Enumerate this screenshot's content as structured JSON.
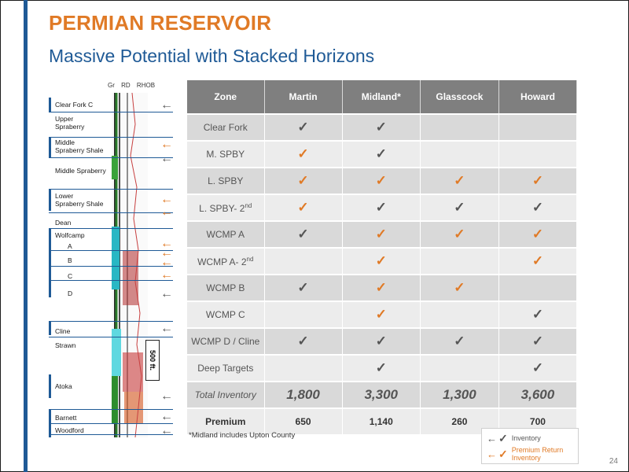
{
  "title": "PERMIAN RESERVOIR",
  "subtitle": "Massive Potential with Stacked Horizons",
  "page_number": "24",
  "colors": {
    "accent_blue": "#1f5a96",
    "accent_orange": "#e07a26",
    "header_gray": "#7f7f7f"
  },
  "log": {
    "track_headers": [
      "Gr",
      "RD",
      "RHOB"
    ],
    "zones": [
      {
        "label": "Clear Fork C"
      },
      {
        "label": "Upper\nSpraberry"
      },
      {
        "label": "Middle\nSpraberry Shale"
      },
      {
        "label": "Middle Spraberry"
      },
      {
        "label": "Lower\nSpraberry Shale"
      },
      {
        "label": "Dean"
      },
      {
        "label": "Wolfcamp"
      },
      {
        "label": "A"
      },
      {
        "label": "B"
      },
      {
        "label": "C"
      },
      {
        "label": "D"
      },
      {
        "label": "Cline"
      },
      {
        "label": "Strawn"
      },
      {
        "label": "Atoka"
      },
      {
        "label": "Barnett"
      },
      {
        "label": "Woodford"
      }
    ],
    "scale_label": "500 ft."
  },
  "table": {
    "headers": [
      "Zone",
      "Martin",
      "Midland*",
      "Glasscock",
      "Howard"
    ],
    "rows": [
      {
        "zone": "Clear Fork",
        "cells": [
          "gray",
          "gray",
          "",
          ""
        ]
      },
      {
        "zone": "M. SPBY",
        "cells": [
          "orange",
          "gray",
          "",
          ""
        ]
      },
      {
        "zone": "L. SPBY",
        "cells": [
          "orange",
          "orange",
          "orange",
          "orange"
        ]
      },
      {
        "zone": "L. SPBY- 2nd",
        "cells": [
          "orange",
          "gray",
          "gray",
          "gray"
        ]
      },
      {
        "zone": "WCMP A",
        "cells": [
          "gray",
          "orange",
          "orange",
          "orange"
        ]
      },
      {
        "zone": "WCMP A- 2nd",
        "cells": [
          "",
          "orange",
          "",
          "orange"
        ]
      },
      {
        "zone": "WCMP B",
        "cells": [
          "gray",
          "orange",
          "orange",
          ""
        ]
      },
      {
        "zone": "WCMP C",
        "cells": [
          "",
          "orange",
          "",
          "gray"
        ]
      },
      {
        "zone": "WCMP D / Cline",
        "cells": [
          "gray",
          "gray",
          "gray",
          "gray"
        ]
      },
      {
        "zone": "Deep Targets",
        "cells": [
          "",
          "gray",
          "",
          "gray"
        ]
      }
    ],
    "total_row": {
      "label": "Total Inventory",
      "values": [
        "1,800",
        "3,300",
        "1,300",
        "3,600"
      ]
    },
    "premium_row": {
      "label": "Premium",
      "values": [
        "650",
        "1,140",
        "260",
        "700"
      ]
    }
  },
  "footnote": "*Midland includes Upton County",
  "legend": {
    "inventory": "Inventory",
    "premium": "Premium Return Inventory"
  }
}
